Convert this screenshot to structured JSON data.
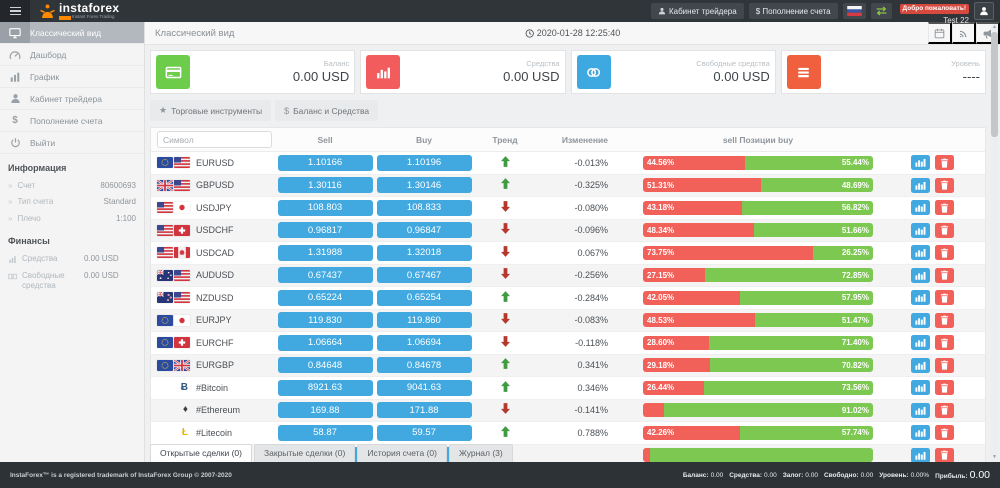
{
  "header": {
    "brand": "instaforex",
    "brand_sub": "Instant Forex Trading",
    "trader_cabinet": "Кабинет трейдера",
    "deposit": "$ Пополнение счета",
    "welcome": "Добро пожаловать!",
    "username": "Test 22",
    "icons": [
      "menu-icon",
      "instaforex-logo-icon",
      "user-icon",
      "flag-ru-icon",
      "swap-icon",
      "avatar-icon"
    ]
  },
  "sidebar": {
    "menu": [
      {
        "label": "Классический вид",
        "icon": "desktop-icon",
        "active": true
      },
      {
        "label": "Дашборд",
        "icon": "dashboard-gauge-icon",
        "active": false
      },
      {
        "label": "График",
        "icon": "bar-chart-icon",
        "active": false
      },
      {
        "label": "Кабинет трейдера",
        "icon": "user-icon",
        "active": false
      },
      {
        "label": "Пополнение счета",
        "icon": "dollar-icon",
        "active": false
      },
      {
        "label": "Выйти",
        "icon": "power-icon",
        "active": false
      }
    ],
    "info_title": "Информация",
    "info": [
      {
        "label": "Счет",
        "value": "80600693"
      },
      {
        "label": "Тип счета",
        "value": "Standard"
      },
      {
        "label": "Плечо",
        "value": "1:100"
      }
    ],
    "finance_title": "Финансы",
    "finance": [
      {
        "label": "Средства",
        "value": "0.00 USD",
        "icon": "mini-chart-icon"
      },
      {
        "label": "Свободные средства",
        "value": "0.00 USD",
        "icon": "banknote-icon"
      }
    ]
  },
  "main": {
    "page_title": "Классический вид",
    "datetime": "2020-01-28 12:25:40",
    "header_icons": [
      "calendar-icon",
      "rss-icon",
      "megaphone-icon"
    ],
    "cards": [
      {
        "label": "Баланс",
        "value": "0.00 USD",
        "color": "#6ecc4b",
        "icon": "credit-card-icon"
      },
      {
        "label": "Средства",
        "value": "0.00 USD",
        "color": "#f25c5c",
        "icon": "column-chart-icon"
      },
      {
        "label": "Свободные средства",
        "value": "0.00 USD",
        "color": "#3ea8e0",
        "icon": "coins-icon"
      },
      {
        "label": "Уровень",
        "value": "----",
        "color": "#f0603f",
        "icon": "list-lines-icon"
      }
    ],
    "toolbar": [
      {
        "label": "Торговые инструменты",
        "icon": "star-icon"
      },
      {
        "label": "Баланс и Средства",
        "icon": "dollar-icon"
      }
    ],
    "table": {
      "filter_placeholder": "Символ",
      "headers": {
        "sell": "Sell",
        "buy": "Buy",
        "trend": "Тренд",
        "change": "Изменение",
        "positions": "sell Позиции buy"
      },
      "rows": [
        {
          "symbol": "EURUSD",
          "flags": [
            "eu",
            "us"
          ],
          "sell": "1.10166",
          "buy": "1.10196",
          "trend": "up",
          "change": "-0.013%",
          "sell_pct": 44.56,
          "buy_pct": 55.44,
          "sell_label": "44.56%",
          "buy_label": "55.44%"
        },
        {
          "symbol": "GBPUSD",
          "flags": [
            "gb",
            "us"
          ],
          "sell": "1.30116",
          "buy": "1.30146",
          "trend": "up",
          "change": "-0.325%",
          "sell_pct": 51.31,
          "buy_pct": 48.69,
          "sell_label": "51.31%",
          "buy_label": "48.69%"
        },
        {
          "symbol": "USDJPY",
          "flags": [
            "us",
            "jp"
          ],
          "sell": "108.803",
          "buy": "108.833",
          "trend": "down",
          "change": "-0.080%",
          "sell_pct": 43.18,
          "buy_pct": 56.82,
          "sell_label": "43.18%",
          "buy_label": "56.82%"
        },
        {
          "symbol": "USDCHF",
          "flags": [
            "us",
            "ch"
          ],
          "sell": "0.96817",
          "buy": "0.96847",
          "trend": "down",
          "change": "-0.096%",
          "sell_pct": 48.34,
          "buy_pct": 51.66,
          "sell_label": "48.34%",
          "buy_label": "51.66%"
        },
        {
          "symbol": "USDCAD",
          "flags": [
            "us",
            "ca"
          ],
          "sell": "1.31988",
          "buy": "1.32018",
          "trend": "down",
          "change": "0.067%",
          "sell_pct": 73.75,
          "buy_pct": 26.25,
          "sell_label": "73.75%",
          "buy_label": "26.25%"
        },
        {
          "symbol": "AUDUSD",
          "flags": [
            "au",
            "us"
          ],
          "sell": "0.67437",
          "buy": "0.67467",
          "trend": "down",
          "change": "-0.256%",
          "sell_pct": 27.15,
          "buy_pct": 72.85,
          "sell_label": "27.15%",
          "buy_label": "72.85%"
        },
        {
          "symbol": "NZDUSD",
          "flags": [
            "nz",
            "us"
          ],
          "sell": "0.65224",
          "buy": "0.65254",
          "trend": "up",
          "change": "-0.284%",
          "sell_pct": 42.05,
          "buy_pct": 57.95,
          "sell_label": "42.05%",
          "buy_label": "57.95%"
        },
        {
          "symbol": "EURJPY",
          "flags": [
            "eu",
            "jp"
          ],
          "sell": "119.830",
          "buy": "119.860",
          "trend": "down",
          "change": "-0.083%",
          "sell_pct": 48.53,
          "buy_pct": 51.47,
          "sell_label": "48.53%",
          "buy_label": "51.47%"
        },
        {
          "symbol": "EURCHF",
          "flags": [
            "eu",
            "ch"
          ],
          "sell": "1.06664",
          "buy": "1.06694",
          "trend": "down",
          "change": "-0.118%",
          "sell_pct": 28.6,
          "buy_pct": 71.4,
          "sell_label": "28.60%",
          "buy_label": "71.40%"
        },
        {
          "symbol": "EURGBP",
          "flags": [
            "eu",
            "gb"
          ],
          "sell": "0.84648",
          "buy": "0.84678",
          "trend": "up",
          "change": "0.341%",
          "sell_pct": 29.18,
          "buy_pct": 70.82,
          "sell_label": "29.18%",
          "buy_label": "70.82%"
        },
        {
          "symbol": "#Bitcoin",
          "crypto": "btc",
          "sell": "8921.63",
          "buy": "9041.63",
          "trend": "up",
          "change": "0.346%",
          "sell_pct": 26.44,
          "buy_pct": 73.56,
          "sell_label": "26.44%",
          "buy_label": "73.56%"
        },
        {
          "symbol": "#Ethereum",
          "crypto": "eth",
          "sell": "169.88",
          "buy": "171.88",
          "trend": "down",
          "change": "-0.141%",
          "sell_pct": 8.98,
          "buy_pct": 91.02,
          "sell_label": "",
          "buy_label": "91.02%"
        },
        {
          "symbol": "#Litecoin",
          "crypto": "ltc",
          "sell": "58.87",
          "buy": "59.57",
          "trend": "up",
          "change": "0.788%",
          "sell_pct": 42.26,
          "buy_pct": 57.74,
          "sell_label": "42.26%",
          "buy_label": "57.74%"
        },
        {
          "symbol": "",
          "flags": [],
          "sell": "",
          "buy": "",
          "trend": "",
          "change": "",
          "sell_pct": 3,
          "buy_pct": 97,
          "sell_label": "",
          "buy_label": "",
          "partial": true
        }
      ]
    },
    "tabs": [
      {
        "label": "Открытые сделки (0)",
        "active": true
      },
      {
        "label": "Закрытые сделки (0)",
        "active": false
      },
      {
        "label": "История счета (0)",
        "active": false
      },
      {
        "label": "Журнал (3)",
        "active": false
      }
    ]
  },
  "footer": {
    "left": "InstaForex™ is a registered trademark of InstaForex Group © 2007-2020",
    "stats": [
      {
        "label": "Баланс:",
        "value": "0.00",
        "big": false
      },
      {
        "label": "Средства:",
        "value": "0.00",
        "big": false
      },
      {
        "label": "Залог:",
        "value": "0.00",
        "big": false
      },
      {
        "label": "Свободно:",
        "value": "0.00",
        "big": false
      },
      {
        "label": "Уровень:",
        "value": "0.00%",
        "big": false
      },
      {
        "label": "Прибыль:",
        "value": "0.00",
        "big": true
      }
    ]
  }
}
